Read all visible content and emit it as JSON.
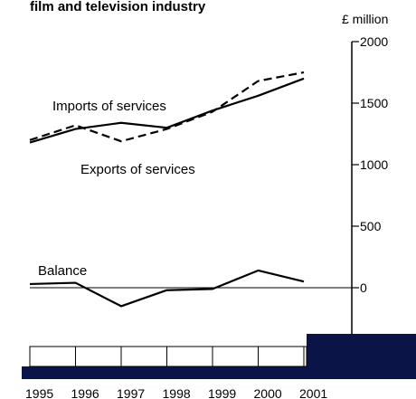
{
  "chart_data": {
    "type": "line",
    "title": "film and television industry",
    "ylabel": "£ million",
    "x": [
      "1995",
      "1996",
      "1997",
      "1998",
      "1999",
      "2000",
      "2001"
    ],
    "ylim": [
      0,
      2000
    ],
    "yticks": [
      "2000",
      "1500",
      "1000",
      "500",
      "0"
    ],
    "ytick_values": [
      2000,
      1500,
      1000,
      500,
      0
    ],
    "series": [
      {
        "name": "Imports of services",
        "style": "solid",
        "values": [
          1180,
          1290,
          1340,
          1300,
          1440,
          1560,
          1700
        ]
      },
      {
        "name": "Exports of services",
        "style": "dashed",
        "values": [
          1200,
          1320,
          1190,
          1290,
          1430,
          1680,
          1750
        ]
      },
      {
        "name": "Balance",
        "style": "solid",
        "values": [
          30,
          40,
          -150,
          -20,
          -10,
          140,
          50
        ]
      }
    ],
    "grid": false,
    "colors": {
      "line": "#000000",
      "band": "#0a1446"
    }
  }
}
